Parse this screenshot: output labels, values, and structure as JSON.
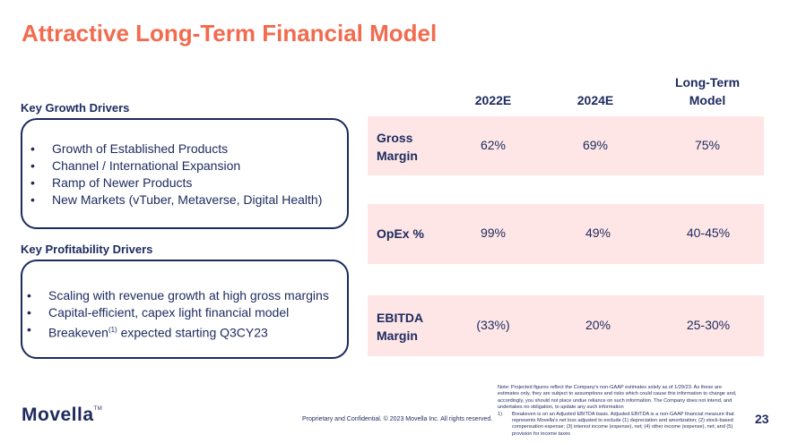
{
  "title": "Attractive Long-Term Financial Model",
  "growth": {
    "heading": "Key Growth Drivers",
    "items": [
      "Growth of Established Products",
      "Channel / International Expansion",
      "Ramp of Newer Products",
      "New Markets (vTuber, Metaverse, Digital Health)"
    ]
  },
  "profitability": {
    "heading": "Key Profitability Drivers",
    "item1": "Scaling with revenue growth at high gross margins",
    "item2": "Capital-efficient, capex light financial model",
    "item3_prefix": "Breakeven",
    "item3_sup": "(1)",
    "item3_suffix": " expected starting Q3CY23"
  },
  "table": {
    "columns": [
      "2022E",
      "2024E",
      "Long-Term Model"
    ],
    "rows": [
      {
        "label": "Gross Margin",
        "values": [
          "62%",
          "69%",
          "75%"
        ]
      },
      {
        "label": "OpEx %",
        "values": [
          "99%",
          "49%",
          "40-45%"
        ]
      },
      {
        "label": "EBITDA Margin",
        "values": [
          "(33%)",
          "20%",
          "25-30%"
        ]
      }
    ]
  },
  "footer": {
    "logo": "Movella",
    "logo_tm": "TM",
    "confidential": "Proprietary and Confidential. © 2023 Movella Inc. All rights reserved.",
    "page_number": "23",
    "note": "Note: Projected figures reflect the Company's non-GAAP estimates solely as of 1/29/23. As these are estimates only, they are subject to assumptions and risks which could cause this information to change and, accordingly, you should not place undue reliance on such information. The Company does not intend, and undertakes no obligation, to update any such information",
    "footnote_number": "1)",
    "footnote": "Breakeven is on an Adjusted EBITDA basis. Adjusted EBITDA is a non-GAAP financial measure that represents Movella's net loss adjusted to exclude (1) depreciation and amortization; (2) stock-based compensation expense; (3) interest income (expense), net; (4) other income (expense), net; and (5) provision for income taxes"
  }
}
